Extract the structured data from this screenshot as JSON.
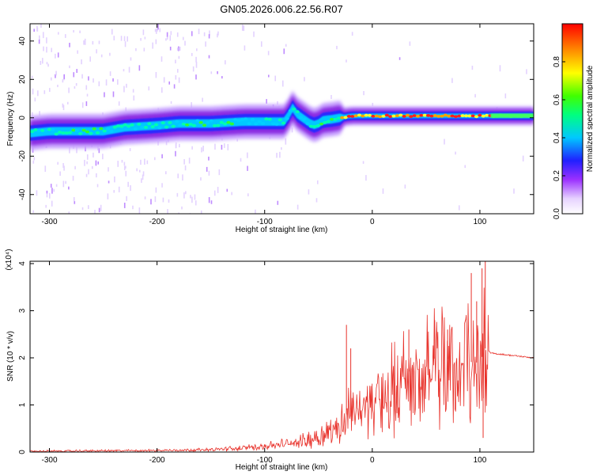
{
  "title": "GN05.2026.006.22.56.R07",
  "chart_data": [
    {
      "type": "heatmap",
      "xlabel": "Height of straight line (km)",
      "ylabel": "Frequency (Hz)",
      "xlim": [
        -318,
        150
      ],
      "ylim": [
        -50,
        49
      ],
      "xticks": [
        -300,
        -200,
        -100,
        0,
        100
      ],
      "yticks": [
        40,
        20,
        0,
        -20,
        -40
      ],
      "ridge": {
        "x": [
          -318,
          -300,
          -280,
          -250,
          -230,
          -200,
          -180,
          -150,
          -120,
          -95,
          -80,
          -75,
          -70,
          -60,
          -55,
          -50,
          -45,
          -40,
          -30,
          -20,
          -10,
          0,
          20,
          50,
          80,
          100,
          120,
          150
        ],
        "y": [
          -8,
          -7,
          -7,
          -7,
          -5,
          -4,
          -3,
          -3,
          -2,
          -2,
          -2,
          6,
          2,
          -2,
          -4,
          -3,
          -1,
          -1,
          0,
          1,
          1,
          1,
          1,
          1,
          1,
          1,
          1,
          1
        ]
      },
      "colorbar": {
        "label": "Normalized spectral amplitude",
        "range": [
          0,
          1
        ],
        "ticks": [
          "0.0",
          "0.2",
          "0.4",
          "0.6",
          "0.8"
        ]
      }
    },
    {
      "type": "line",
      "xlabel": "Height of straight line (km)",
      "ylabel": "SNR (10 * v/v)",
      "multiplier": "(x10⁴)",
      "xlim": [
        -318,
        150
      ],
      "ylim": [
        0,
        4.05
      ],
      "xticks": [
        -300,
        -200,
        -100,
        0,
        100
      ],
      "yticks": [
        0,
        1,
        2,
        3,
        4
      ],
      "color": "#e8312a",
      "envelope": {
        "x": [
          -318,
          -200,
          -150,
          -120,
          -100,
          -80,
          -60,
          -40,
          -30,
          -20,
          0,
          20,
          40,
          60,
          80,
          95,
          100,
          105,
          110,
          150
        ],
        "y": [
          0.02,
          0.04,
          0.06,
          0.1,
          0.15,
          0.2,
          0.3,
          0.5,
          0.65,
          0.9,
          1.2,
          1.5,
          1.8,
          2.0,
          1.95,
          1.9,
          1.9,
          2.2,
          2.1,
          2.0
        ]
      },
      "spikes": [
        {
          "x": -24,
          "y": 2.7
        },
        {
          "x": -20,
          "y": 2.2
        },
        {
          "x": 34,
          "y": 2.6
        },
        {
          "x": 58,
          "y": 2.8
        },
        {
          "x": 70,
          "y": 2.6
        },
        {
          "x": 92,
          "y": 3.8
        },
        {
          "x": 97,
          "y": 3.2
        },
        {
          "x": 102,
          "y": 3.9
        },
        {
          "x": 105,
          "y": 4.05
        },
        {
          "x": 103,
          "y": 0.3
        }
      ]
    }
  ]
}
